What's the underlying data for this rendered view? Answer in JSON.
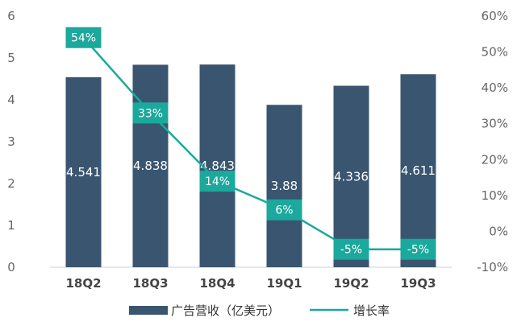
{
  "chart_data": {
    "type": "bar",
    "categories": [
      "18Q2",
      "18Q3",
      "18Q4",
      "19Q1",
      "19Q2",
      "19Q3"
    ],
    "series": [
      {
        "name": "广告营收（亿美元）",
        "type": "bar",
        "axis": "left",
        "values": [
          4.541,
          4.838,
          4.843,
          3.88,
          4.336,
          4.611
        ],
        "labels": [
          "4.541",
          "4.838",
          "4.843",
          "3.88",
          "4.336",
          "4.611"
        ]
      },
      {
        "name": "增长率",
        "type": "line",
        "axis": "right",
        "values": [
          54,
          33,
          14,
          6,
          -5,
          -5
        ],
        "labels": [
          "54%",
          "33%",
          "14%",
          "6%",
          "-5%",
          "-5%"
        ]
      }
    ],
    "yleft": {
      "min": 0,
      "max": 6,
      "ticks": [
        "0",
        "1",
        "2",
        "3",
        "4",
        "5",
        "6"
      ]
    },
    "yright": {
      "min": -10,
      "max": 60,
      "ticks": [
        "-10%",
        "0%",
        "10%",
        "20%",
        "30%",
        "40%",
        "50%",
        "60%"
      ]
    },
    "grid": false,
    "legend_position": "bottom",
    "colors": {
      "bar": "#3a5570",
      "line": "#1aa99c",
      "label_box": "#1aa99c"
    }
  }
}
